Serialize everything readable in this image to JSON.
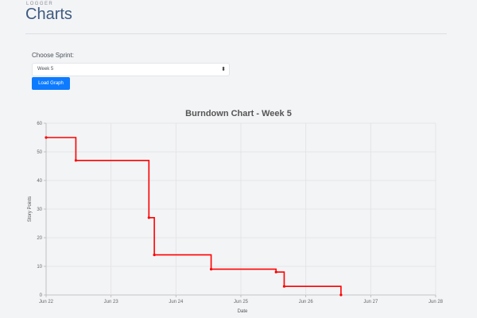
{
  "header": {
    "eyebrow": "LOGGER",
    "title": "Charts"
  },
  "form": {
    "sprint_label": "Choose Sprint:",
    "sprint_selected": "Week 5",
    "load_button": "Load Graph"
  },
  "colors": {
    "accent": "#0d7bff",
    "line": "#ff0000",
    "title": "#3d5a80"
  },
  "icons": {
    "select_caret": "chevron-updown-icon"
  },
  "chart_data": {
    "type": "line",
    "title": "Burndown Chart - Week 5",
    "xlabel": "Date",
    "ylabel": "Story Points",
    "xlim": [
      "2021-06-22",
      "2021-06-28"
    ],
    "ylim": [
      0,
      60
    ],
    "x_tick_labels": [
      "Jun 22",
      "Jun 23",
      "Jun 24",
      "Jun 25",
      "Jun 26",
      "Jun 27",
      "Jun 28"
    ],
    "y_ticks": [
      0,
      10,
      20,
      30,
      40,
      50,
      60
    ],
    "grid": true,
    "line_style": "stepped",
    "series": [
      {
        "x": [
          "2021-06-22T00:00",
          "2021-06-22T11:00",
          "2021-06-23T14:00",
          "2021-06-23T16:00",
          "2021-06-24T13:00",
          "2021-06-25T13:00",
          "2021-06-25T16:00",
          "2021-06-26T13:00"
        ],
        "y": [
          55,
          47,
          27,
          14,
          9,
          8,
          3,
          0
        ]
      }
    ]
  }
}
